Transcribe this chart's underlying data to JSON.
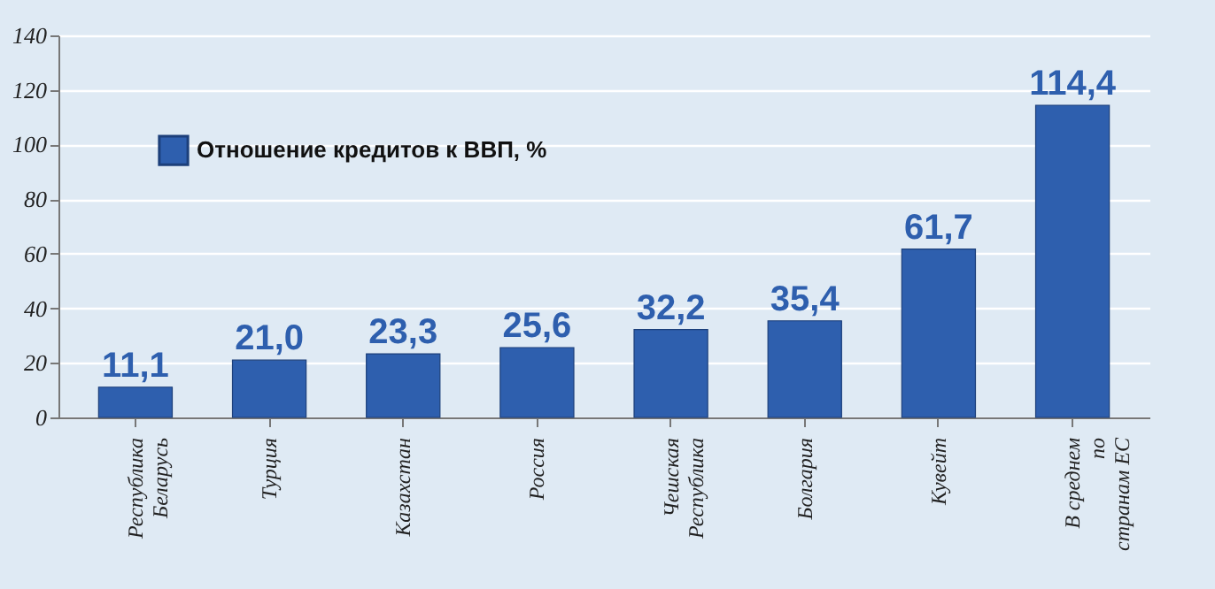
{
  "chart_data": {
    "type": "bar",
    "categories": [
      "Республика\nБеларусь",
      "Турция",
      "Казахстан",
      "Россия",
      "Чешская\nРеспублика",
      "Болгария",
      "Кувейт",
      "В среднем\nпо\nстранам ЕС"
    ],
    "series": [
      {
        "name": "Отношение кредитов к ВВП, %",
        "color": "#2e5fae",
        "values": [
          11.1,
          21.0,
          23.3,
          25.6,
          32.2,
          35.4,
          61.7,
          114.4
        ]
      }
    ],
    "value_labels": [
      "11,1",
      "21,0",
      "23,3",
      "25,6",
      "32,2",
      "35,4",
      "61,7",
      "114,4"
    ],
    "ylim": [
      0,
      140
    ],
    "yticks": [
      0,
      20,
      40,
      60,
      80,
      100,
      120,
      140
    ],
    "grid": "y",
    "legend": "top left"
  }
}
